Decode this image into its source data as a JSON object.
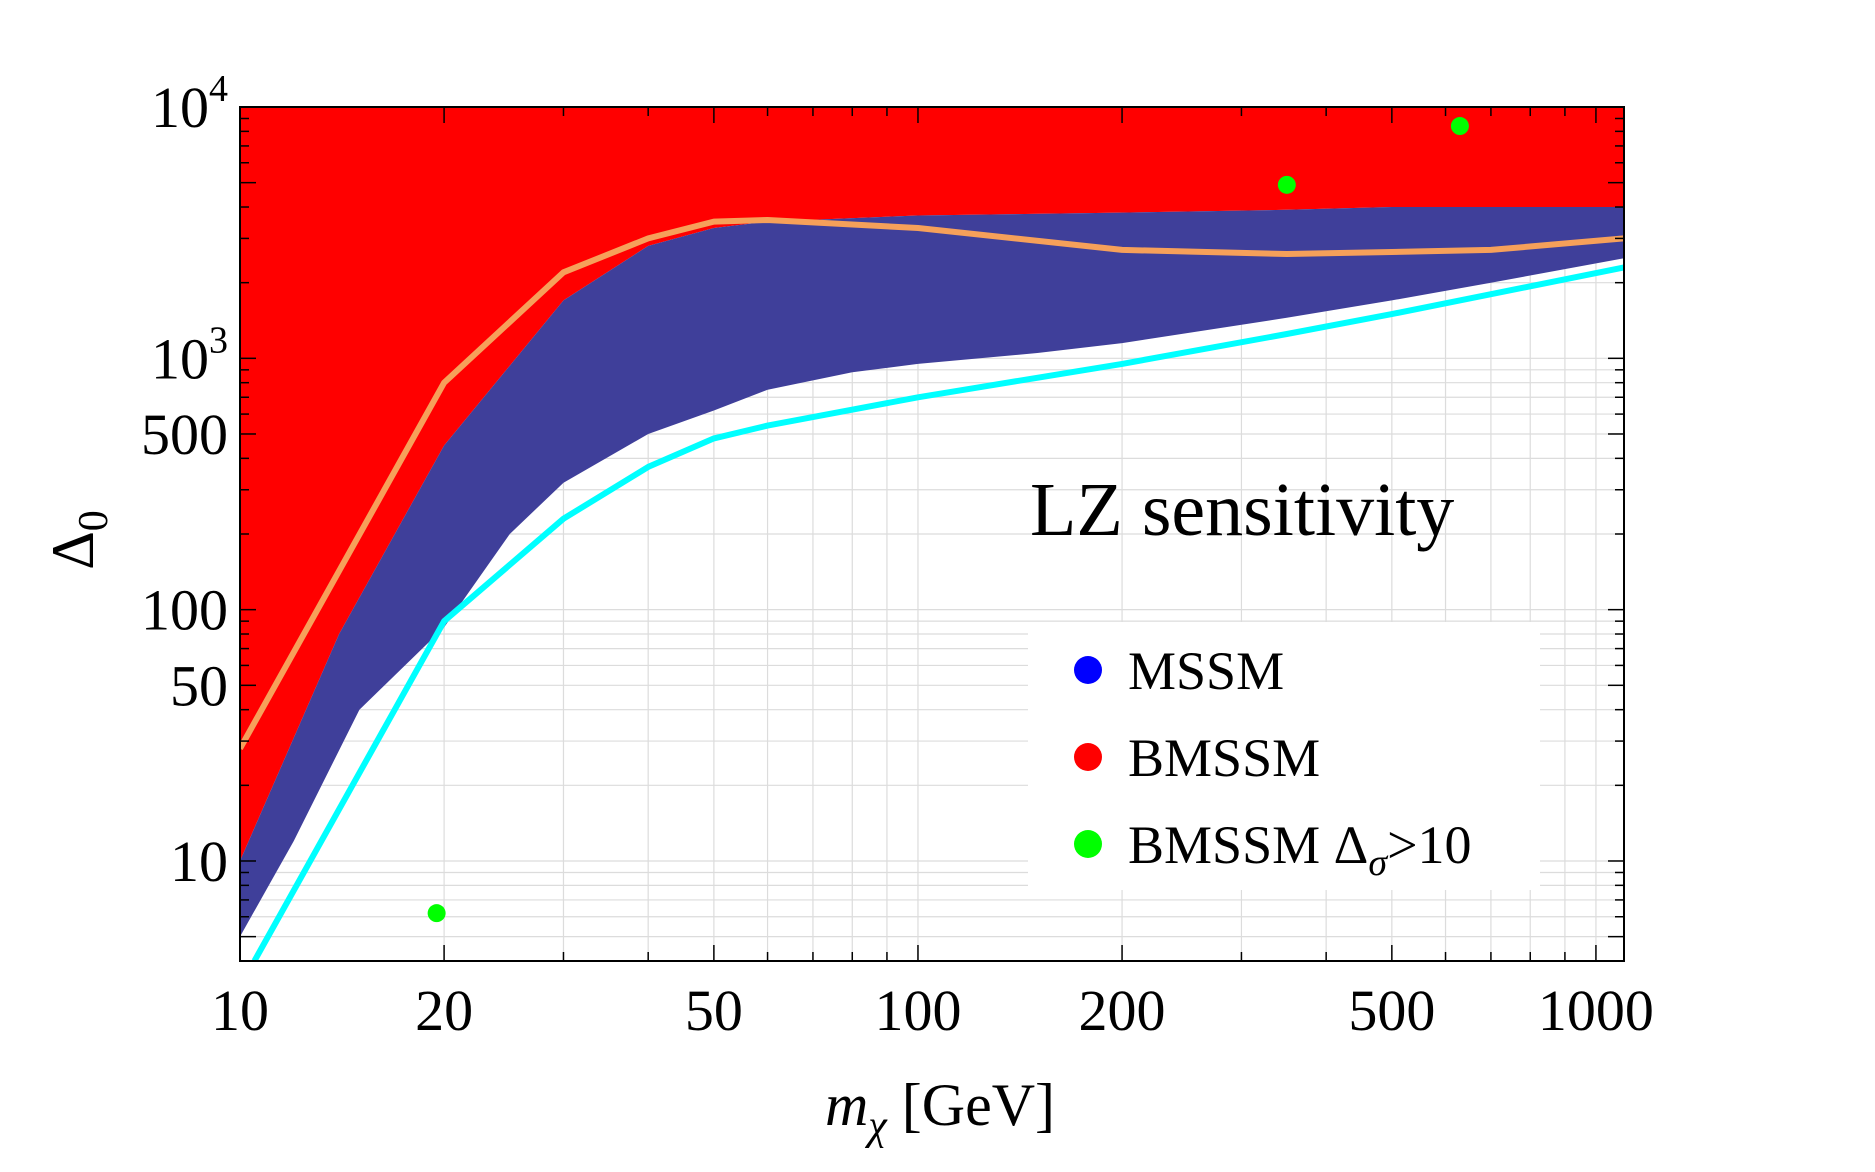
{
  "chart_data": {
    "type": "scatter",
    "title": "",
    "annotation": "LZ  sensitivity",
    "xlabel": {
      "main": "m",
      "sub": "χ",
      "unit": " [GeV]"
    },
    "ylabel": {
      "main": "Δ",
      "sub": "0"
    },
    "x_scale": "log",
    "y_scale": "log",
    "xlim": [
      10,
      1100
    ],
    "ylim": [
      4,
      10000
    ],
    "x_ticks": [
      {
        "value": 10,
        "label": "10"
      },
      {
        "value": 20,
        "label": "20"
      },
      {
        "value": 50,
        "label": "50"
      },
      {
        "value": 100,
        "label": "100"
      },
      {
        "value": 200,
        "label": "200"
      },
      {
        "value": 500,
        "label": "500"
      },
      {
        "value": 1000,
        "label": "1000"
      }
    ],
    "y_ticks": [
      {
        "value": 10,
        "label": "10"
      },
      {
        "value": 50,
        "label": "50"
      },
      {
        "value": 100,
        "label": "100"
      },
      {
        "value": 500,
        "label": "500"
      }
    ],
    "y_power_ticks": [
      {
        "value": 1000,
        "base": "10",
        "exp": "3"
      },
      {
        "value": 10000,
        "base": "10",
        "exp": "4"
      }
    ],
    "grid": true,
    "legend": {
      "position": "bottom-right",
      "entries": [
        {
          "label": "MSSM",
          "sub": "",
          "tail": "",
          "color": "#0000ff"
        },
        {
          "label": "BMSSM",
          "sub": "",
          "tail": "",
          "color": "#ff0000"
        },
        {
          "label": "BMSSM Δ",
          "sub": "σ",
          "tail": ">10",
          "color": "#00ff00"
        }
      ]
    },
    "series": [
      {
        "name": "BMSSM region",
        "kind": "region",
        "color": "#ff0000",
        "lower_boundary": {
          "x": [
            10,
            14,
            20,
            30,
            40,
            50,
            60,
            100,
            200,
            350,
            500,
            700,
            1100
          ],
          "y": [
            10,
            80,
            450,
            1700,
            2800,
            3300,
            3500,
            3700,
            3800,
            3900,
            4000,
            4000,
            4000
          ]
        },
        "upper": 10000
      },
      {
        "name": "MSSM region",
        "kind": "region",
        "color": "#3f3f9a",
        "boundary_upper": {
          "x": [
            10,
            14,
            20,
            30,
            40,
            50,
            60,
            100,
            200,
            350,
            500,
            700,
            1100
          ],
          "y": [
            10,
            80,
            450,
            1700,
            2800,
            3300,
            3500,
            3700,
            3800,
            3900,
            4000,
            4000,
            4000
          ]
        },
        "boundary_lower": {
          "x": [
            10,
            12,
            15,
            20,
            25,
            30,
            40,
            50,
            60,
            80,
            100,
            150,
            200,
            350,
            500,
            700,
            1100
          ],
          "y": [
            5,
            12,
            40,
            85,
            200,
            320,
            500,
            620,
            750,
            880,
            950,
            1050,
            1150,
            1450,
            1700,
            2000,
            2500
          ]
        }
      },
      {
        "name": "LZ sensitivity (orange)",
        "kind": "line",
        "color": "#f6a05a",
        "x": [
          10,
          20,
          30,
          40,
          50,
          60,
          100,
          200,
          350,
          500,
          700,
          1100
        ],
        "y": [
          28,
          800,
          2200,
          3000,
          3500,
          3550,
          3300,
          2700,
          2600,
          2650,
          2700,
          3000
        ]
      },
      {
        "name": "LZ sensitivity (cyan)",
        "kind": "line",
        "color": "#00ffff",
        "x": [
          10.5,
          20,
          30,
          40,
          50,
          60,
          100,
          200,
          350,
          500,
          700,
          1100
        ],
        "y": [
          4,
          90,
          230,
          370,
          480,
          540,
          700,
          950,
          1250,
          1500,
          1800,
          2300
        ]
      },
      {
        "name": "BMSSM Δσ>10",
        "kind": "points",
        "color": "#00ff00",
        "x": [
          19.5,
          350,
          630
        ],
        "y": [
          6.2,
          4900,
          8400
        ]
      }
    ]
  }
}
